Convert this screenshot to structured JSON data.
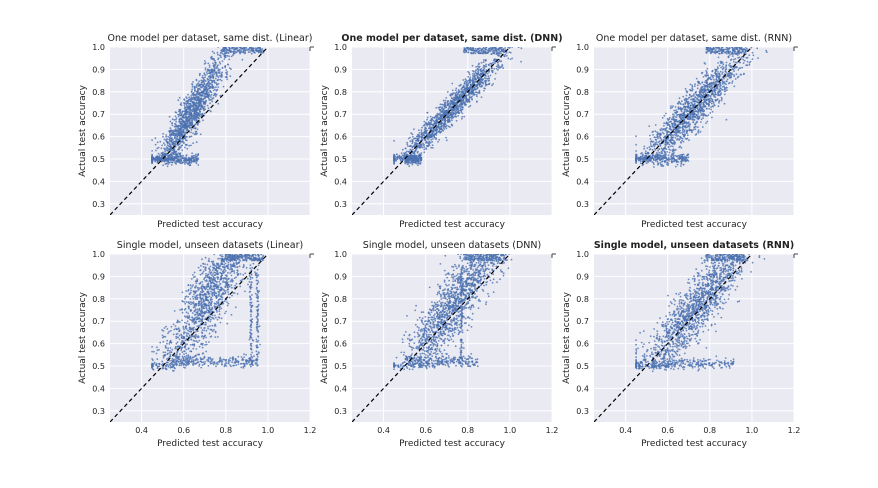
{
  "figure": {
    "rows": 2,
    "cols": 3,
    "x_ticks": [
      "0.4",
      "0.6",
      "0.8",
      "1.0",
      "1.2"
    ],
    "y_ticks": [
      "0.3",
      "0.4",
      "0.5",
      "0.6",
      "0.7",
      "0.8",
      "0.9",
      "1.0"
    ],
    "background": "#eaeaf2",
    "point_color": "#4c72b0",
    "diagonal_color": "#000000"
  },
  "chart_data": [
    {
      "type": "scatter",
      "title": "One model per dataset, same dist. (Linear)",
      "title_bold": false,
      "xlabel": "Predicted test accuracy",
      "ylabel": "Actual test accuracy",
      "xlim": [
        0.25,
        1.2
      ],
      "ylim": [
        0.25,
        1.0
      ],
      "x_tick_labels_shown": false,
      "diagonal": "y = x (dashed)",
      "distribution": {
        "x_center": 0.63,
        "x_spread": 0.09,
        "slope": 1.5,
        "noise": 0.055,
        "floor_band_y": 0.5,
        "floor_band_x": [
          0.5,
          0.67
        ]
      }
    },
    {
      "type": "scatter",
      "title": "One model per dataset, same dist. (DNN)",
      "title_bold": true,
      "xlabel": "Predicted test accuracy",
      "ylabel": "Actual test accuracy",
      "xlim": [
        0.25,
        1.2
      ],
      "ylim": [
        0.25,
        1.0
      ],
      "x_tick_labels_shown": false,
      "diagonal": "y = x (dashed)",
      "distribution": {
        "x_center": 0.72,
        "x_spread": 0.13,
        "slope": 1.0,
        "noise": 0.035,
        "floor_band_y": 0.5,
        "floor_band_x": [
          0.5,
          0.58
        ]
      }
    },
    {
      "type": "scatter",
      "title": "One model per dataset, same dist. (RNN)",
      "title_bold": false,
      "xlabel": "Predicted test accuracy",
      "ylabel": "Actual test accuracy",
      "xlim": [
        0.25,
        1.2
      ],
      "ylim": [
        0.25,
        1.0
      ],
      "x_tick_labels_shown": false,
      "diagonal": "y = x (dashed)",
      "distribution": {
        "x_center": 0.72,
        "x_spread": 0.13,
        "slope": 1.0,
        "noise": 0.05,
        "floor_band_y": 0.5,
        "floor_band_x": [
          0.45,
          0.7
        ]
      }
    },
    {
      "type": "scatter",
      "title": "Single model, unseen datasets (Linear)",
      "title_bold": false,
      "xlabel": "Predicted test accuracy",
      "ylabel": "Actual test accuracy",
      "xlim": [
        0.25,
        1.2
      ],
      "ylim": [
        0.25,
        1.0
      ],
      "x_tick_labels_shown": true,
      "diagonal": "y = x (dashed)",
      "distribution": {
        "x_center": 0.72,
        "x_spread": 0.12,
        "slope": 1.4,
        "noise": 0.09,
        "floor_band_y": 0.52,
        "floor_band_x": [
          0.55,
          0.95
        ],
        "vertical_bands_x": [
          0.92,
          0.95
        ]
      }
    },
    {
      "type": "scatter",
      "title": "Single model, unseen datasets (DNN)",
      "title_bold": false,
      "xlabel": "Predicted test accuracy",
      "ylabel": "Actual test accuracy",
      "xlim": [
        0.25,
        1.2
      ],
      "ylim": [
        0.25,
        1.0
      ],
      "x_tick_labels_shown": true,
      "diagonal": "y = x (dashed)",
      "distribution": {
        "x_center": 0.74,
        "x_spread": 0.13,
        "slope": 1.2,
        "noise": 0.08,
        "floor_band_y": 0.52,
        "floor_band_x": [
          0.5,
          0.85
        ],
        "vertical_bands_x": [
          0.77
        ]
      }
    },
    {
      "type": "scatter",
      "title": "Single model, unseen datasets (RNN)",
      "title_bold": true,
      "xlabel": "Predicted test accuracy",
      "ylabel": "Actual test accuracy",
      "xlim": [
        0.25,
        1.2
      ],
      "ylim": [
        0.25,
        1.0
      ],
      "x_tick_labels_shown": true,
      "diagonal": "y = x (dashed)",
      "distribution": {
        "x_center": 0.74,
        "x_spread": 0.14,
        "slope": 1.1,
        "noise": 0.07,
        "floor_band_y": 0.51,
        "floor_band_x": [
          0.45,
          0.92
        ]
      }
    }
  ]
}
